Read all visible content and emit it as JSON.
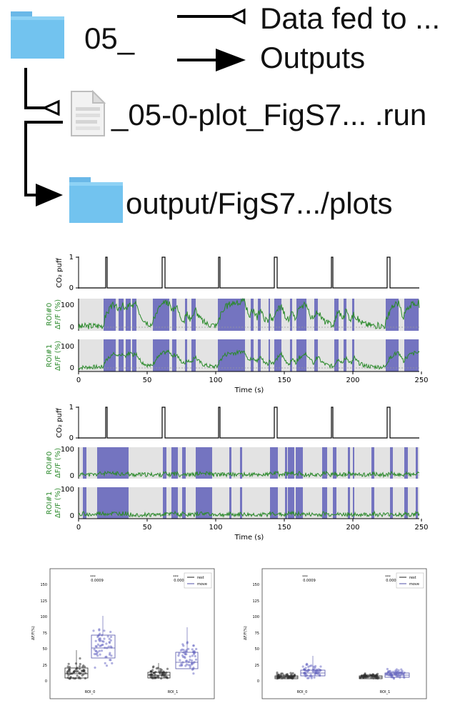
{
  "header": {
    "folder_label": "05_",
    "legend_fed": "Data fed to ...",
    "legend_out": "Outputs",
    "file_label": "_05-0-plot_FigS7... .run",
    "output_label": "output/FigS7.../plots"
  },
  "traces": {
    "panel1": {
      "puff_ylabel": "CO₂ puff",
      "puff_ticks": [
        "1",
        "0"
      ],
      "roi0_ylabel_a": "ROI#0",
      "roi0_ylabel_b": "ΔF/F (%)",
      "roi1_ylabel_a": "ROI#1",
      "roi1_ylabel_b": "ΔF/F (%)",
      "roi_ticks": [
        "100",
        "0"
      ],
      "x_ticks": [
        "0",
        "50",
        "100",
        "150",
        "200",
        "250"
      ],
      "xlabel": "Time (s)"
    },
    "panel2": {
      "puff_ylabel": "CO₂ puff",
      "puff_ticks": [
        "1",
        "0"
      ],
      "roi0_ylabel_a": "ROI#0",
      "roi0_ylabel_b": "ΔF/F (%)",
      "roi1_ylabel_a": "ROI#1",
      "roi1_ylabel_b": "ΔF/F (%)",
      "roi_ticks": [
        "100",
        "0"
      ],
      "x_ticks": [
        "0",
        "50",
        "100",
        "150",
        "200",
        "250"
      ],
      "xlabel": "Time (s)"
    }
  },
  "boxplots": {
    "left": {
      "ylabel": "ΔF/F(%)",
      "y_ticks": [
        "150",
        "125",
        "100",
        "75",
        "50",
        "25",
        "0"
      ],
      "x_ticks": [
        "ROI_0",
        "ROI_1"
      ],
      "sig": [
        "***",
        "0.0009",
        "***",
        "0.0009"
      ],
      "legend": [
        "rest",
        "move"
      ]
    },
    "right": {
      "ylabel": "ΔF/F(%)",
      "y_ticks": [
        "150",
        "125",
        "100",
        "75",
        "50",
        "25",
        "0"
      ],
      "x_ticks": [
        "ROI_0",
        "ROI_1"
      ],
      "sig": [
        "***",
        "0.0009",
        "***",
        "0.0009"
      ],
      "legend": [
        "rest",
        "move"
      ]
    }
  },
  "colors": {
    "move": "#7070bf",
    "rest_shade": "#e3e3e3",
    "trace": "#2a8a2a",
    "roi_label": "#2e8b2e",
    "rest_points": "#333333"
  },
  "icons": [
    "folder-icon",
    "file-icon",
    "output-folder-icon"
  ]
}
